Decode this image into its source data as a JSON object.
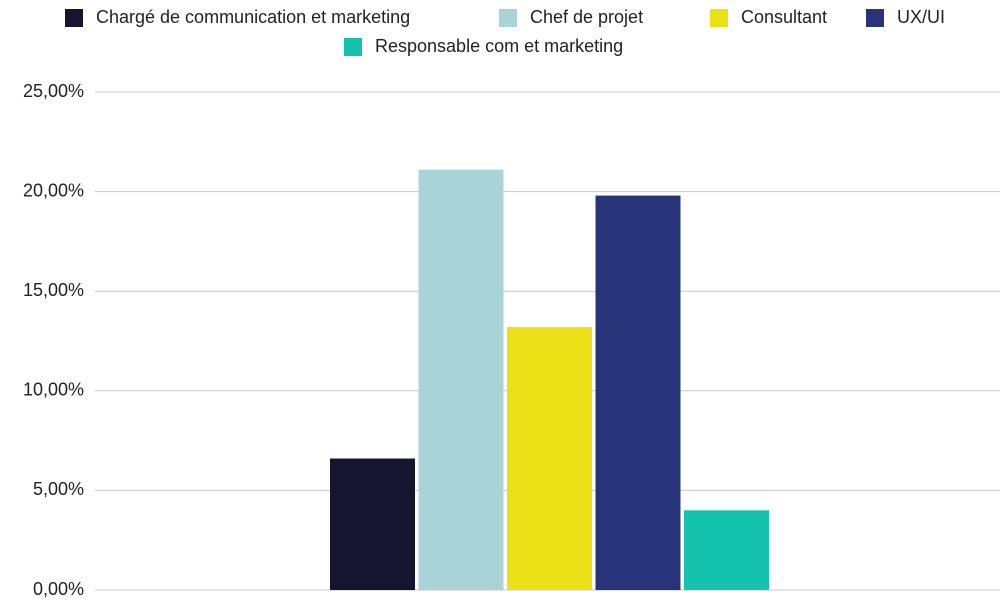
{
  "chart_data": {
    "type": "bar",
    "categories": [
      null
    ],
    "series": [
      {
        "name": "Chargé de communication et marketing",
        "color": "#16142e",
        "values": [
          6.6
        ]
      },
      {
        "name": "Chef de projet",
        "color": "#aad3d8",
        "values": [
          21.1
        ]
      },
      {
        "name": "Consultant",
        "color": "#ebe016",
        "values": [
          13.2
        ]
      },
      {
        "name": "UX/UI",
        "color": "#283479",
        "values": [
          19.8
        ]
      },
      {
        "name": "Responsable com et marketing",
        "color": "#14c2ae",
        "values": [
          4.0
        ]
      }
    ],
    "ylim": [
      0,
      25
    ],
    "yticks": [
      {
        "value": 0,
        "label": "0,00%"
      },
      {
        "value": 5,
        "label": "5,00%"
      },
      {
        "value": 10,
        "label": "10,00%"
      },
      {
        "value": 15,
        "label": "15,00%"
      },
      {
        "value": 20,
        "label": "20,00%"
      },
      {
        "value": 25,
        "label": "25,00%"
      }
    ],
    "grid": true,
    "legend": "top"
  }
}
